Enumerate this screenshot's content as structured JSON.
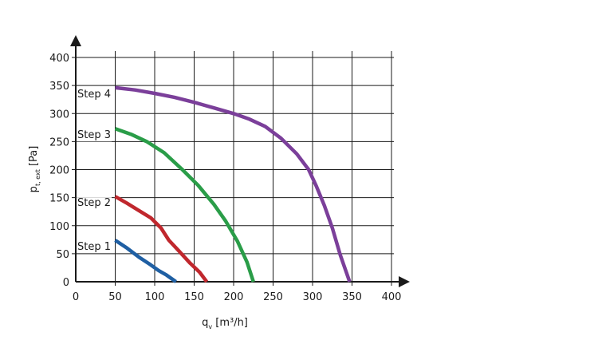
{
  "chart_data": {
    "type": "line",
    "xlabel": "q_v [m³/h]",
    "ylabel": "p_t, ext [Pa]",
    "x_ticks": [
      0,
      50,
      100,
      150,
      200,
      250,
      300,
      350,
      400
    ],
    "y_ticks": [
      0,
      50,
      100,
      150,
      200,
      250,
      300,
      350,
      400
    ],
    "xlim": [
      0,
      400
    ],
    "ylim": [
      0,
      400
    ],
    "grid": true,
    "series": [
      {
        "name": "Step 1",
        "color": "#1f5fa3",
        "points": [
          [
            50,
            74
          ],
          [
            65,
            60
          ],
          [
            80,
            44
          ],
          [
            95,
            30
          ],
          [
            105,
            20
          ],
          [
            115,
            12
          ],
          [
            127,
            0
          ]
        ]
      },
      {
        "name": "Step 2",
        "color": "#c0272d",
        "points": [
          [
            50,
            152
          ],
          [
            65,
            140
          ],
          [
            80,
            127
          ],
          [
            95,
            114
          ],
          [
            108,
            96
          ],
          [
            118,
            74
          ],
          [
            130,
            56
          ],
          [
            145,
            33
          ],
          [
            157,
            17
          ],
          [
            166,
            0
          ]
        ]
      },
      {
        "name": "Step 3",
        "color": "#2a9d48",
        "points": [
          [
            50,
            273
          ],
          [
            70,
            263
          ],
          [
            90,
            250
          ],
          [
            112,
            230
          ],
          [
            135,
            200
          ],
          [
            155,
            172
          ],
          [
            175,
            138
          ],
          [
            190,
            108
          ],
          [
            205,
            72
          ],
          [
            217,
            35
          ],
          [
            225,
            0
          ]
        ]
      },
      {
        "name": "Step 4",
        "color": "#7b3f9a",
        "points": [
          [
            50,
            346
          ],
          [
            75,
            342
          ],
          [
            100,
            336
          ],
          [
            125,
            329
          ],
          [
            150,
            320
          ],
          [
            175,
            310
          ],
          [
            200,
            300
          ],
          [
            220,
            290
          ],
          [
            240,
            277
          ],
          [
            260,
            256
          ],
          [
            280,
            228
          ],
          [
            295,
            200
          ],
          [
            305,
            170
          ],
          [
            315,
            136
          ],
          [
            325,
            96
          ],
          [
            335,
            48
          ],
          [
            347,
            0
          ]
        ]
      }
    ]
  }
}
